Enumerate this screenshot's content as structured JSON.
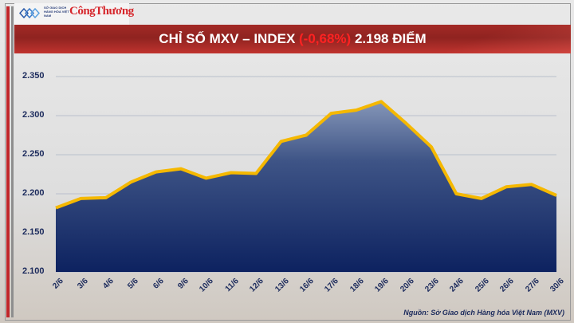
{
  "header": {
    "logo_exchange": "SỞ GIAO DỊCH HÀNG HÓA VIỆT NAM",
    "logo_brand": "CôngThương",
    "title_prefix": "CHỈ SỐ MXV – INDEX",
    "title_change": "(-0,68%)",
    "title_value": "2.198 ĐIỂM"
  },
  "colors": {
    "title_bar": "#9b2723",
    "negative": "#ff2222",
    "area_top": "#5a6f9c",
    "area_bottom": "#0d2260",
    "line": "#f5b800",
    "axis_text": "#1b2a5c"
  },
  "source": "Nguồn: Sở Giao dịch Hàng hóa Việt Nam (MXV)",
  "chart_data": {
    "type": "area",
    "title": "CHỈ SỐ MXV – INDEX (-0,68%) 2.198 ĐIỂM",
    "xlabel": "",
    "ylabel": "",
    "ylim": [
      2100,
      2350
    ],
    "yticks": [
      "2.350",
      "2.300",
      "2.250",
      "2.200",
      "2.150",
      "2.100"
    ],
    "grid": true,
    "legend": "none",
    "categories": [
      "2/6",
      "3/6",
      "4/6",
      "5/6",
      "6/6",
      "9/6",
      "10/6",
      "11/6",
      "12/6",
      "13/6",
      "16/6",
      "17/6",
      "18/6",
      "19/6",
      "20/6",
      "23/6",
      "24/6",
      "25/6",
      "26/6",
      "27/6",
      "30/6"
    ],
    "series": [
      {
        "name": "MXV-Index",
        "values": [
          2182,
          2194,
          2195,
          2215,
          2228,
          2232,
          2220,
          2227,
          2226,
          2267,
          2275,
          2303,
          2307,
          2318,
          2290,
          2260,
          2200,
          2194,
          2209,
          2212,
          2198
        ]
      }
    ]
  }
}
